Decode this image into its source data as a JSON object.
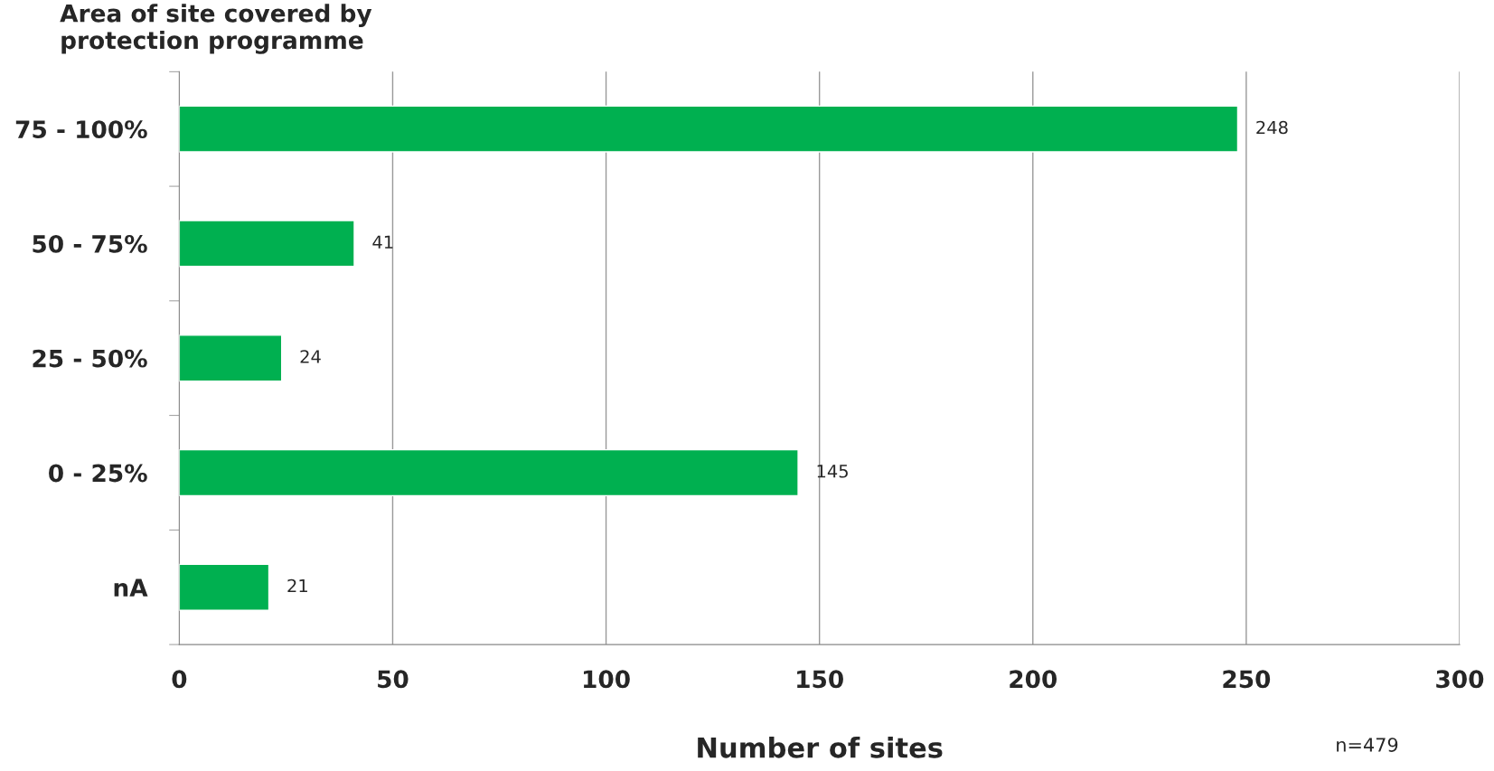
{
  "chart_data": {
    "type": "bar",
    "orientation": "horizontal",
    "ylabel": "Area of site covered by protection programme",
    "xlabel": "Number of sites",
    "categories": [
      "75 - 100%",
      "50 - 75%",
      "25 - 50%",
      "0 - 25%",
      "nA"
    ],
    "values": [
      248,
      41,
      24,
      145,
      21
    ],
    "color": "#00b050",
    "xlim": [
      0,
      300
    ],
    "xticks": [
      0,
      50,
      100,
      150,
      200,
      250,
      300
    ],
    "grid": "x",
    "data_labels": true,
    "annotations": [
      "n=479"
    ]
  }
}
